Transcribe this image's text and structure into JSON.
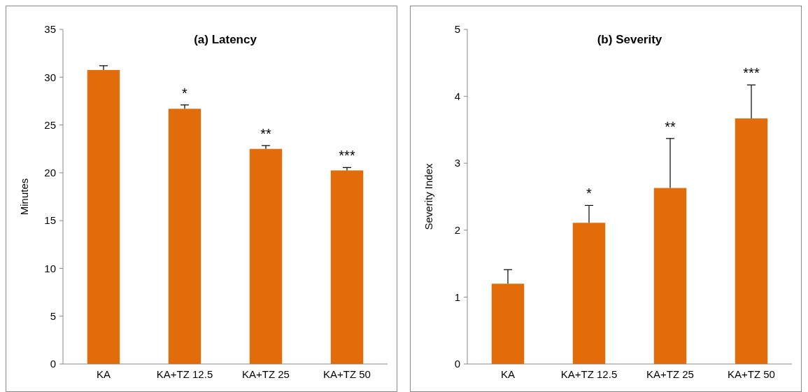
{
  "chart_data": [
    {
      "type": "bar",
      "title": "(a) Latency",
      "ylabel": "Minutes",
      "categories": [
        "KA",
        "KA+TZ 12.5",
        "KA+TZ 25",
        "KA+TZ 50"
      ],
      "values": [
        30.75,
        26.7,
        22.5,
        20.25
      ],
      "errors": [
        [
          30.75,
          31.2
        ],
        [
          26.7,
          27.1
        ],
        [
          22.5,
          22.85
        ],
        [
          20.25,
          20.55
        ]
      ],
      "color": "#e36c0a",
      "ylim": [
        0,
        35
      ],
      "yticks": [
        0,
        5,
        10,
        15,
        20,
        25,
        30,
        35
      ],
      "annotations": [
        {
          "text": "*",
          "x": "KA+TZ 12.5",
          "y": 27.1
        },
        {
          "text": "**",
          "x": "KA+TZ 25",
          "y": 22.85
        },
        {
          "text": "***",
          "x": "KA+TZ 50",
          "y": 20.55
        }
      ]
    },
    {
      "type": "bar",
      "title": "(b) Severity",
      "ylabel": "Severity Index",
      "categories": [
        "KA",
        "KA+TZ 12.5",
        "KA+TZ 25",
        "KA+TZ 50"
      ],
      "values": [
        1.2,
        2.11,
        2.63,
        3.67
      ],
      "errors": [
        [
          1.2,
          1.41
        ],
        [
          2.11,
          2.37
        ],
        [
          2.63,
          3.37
        ],
        [
          3.67,
          4.17
        ]
      ],
      "color": "#e36c0a",
      "ylim": [
        0,
        5
      ],
      "yticks": [
        0,
        1,
        2,
        3,
        4,
        5
      ],
      "annotations": [
        {
          "text": "*",
          "x": "KA+TZ 12.5",
          "y": 2.37
        },
        {
          "text": "**",
          "x": "KA+TZ 25",
          "y": 3.37
        },
        {
          "text": "***",
          "x": "KA+TZ 50",
          "y": 4.17
        }
      ]
    }
  ]
}
